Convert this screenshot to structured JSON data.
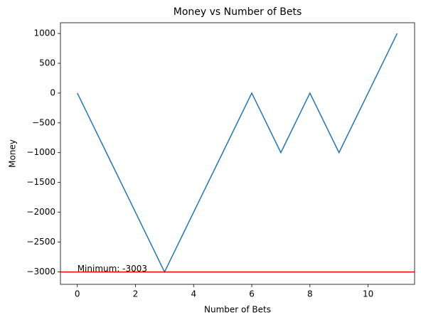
{
  "chart_data": {
    "type": "line",
    "title": "Money vs Number of Bets",
    "x_label": "Number of Bets",
    "y_label": "Money",
    "x": [
      0,
      1,
      2,
      3,
      4,
      5,
      6,
      7,
      8,
      9,
      10,
      11
    ],
    "series": [
      {
        "name": "Money",
        "color": "#1f77b4",
        "values": [
          0,
          -1000,
          -2000,
          -3003,
          -2000,
          -1000,
          0,
          -1000,
          0,
          -1000,
          0,
          1000
        ]
      }
    ],
    "hline": {
      "value": -3003,
      "color": "#ff0000"
    },
    "annotation": "Minimum: -3003",
    "xlim": [
      -0.58,
      11.6
    ],
    "ylim": [
      -3210,
      1180
    ],
    "xticks": [
      0,
      2,
      4,
      6,
      8,
      10
    ],
    "yticks": [
      {
        "value": -3000,
        "label": "−3000"
      },
      {
        "value": -2500,
        "label": "−2500"
      },
      {
        "value": -2000,
        "label": "−2000"
      },
      {
        "value": -1500,
        "label": "−1500"
      },
      {
        "value": -1000,
        "label": "−1000"
      },
      {
        "value": -500,
        "label": "−500"
      },
      0,
      500,
      1000
    ],
    "grid": false
  }
}
